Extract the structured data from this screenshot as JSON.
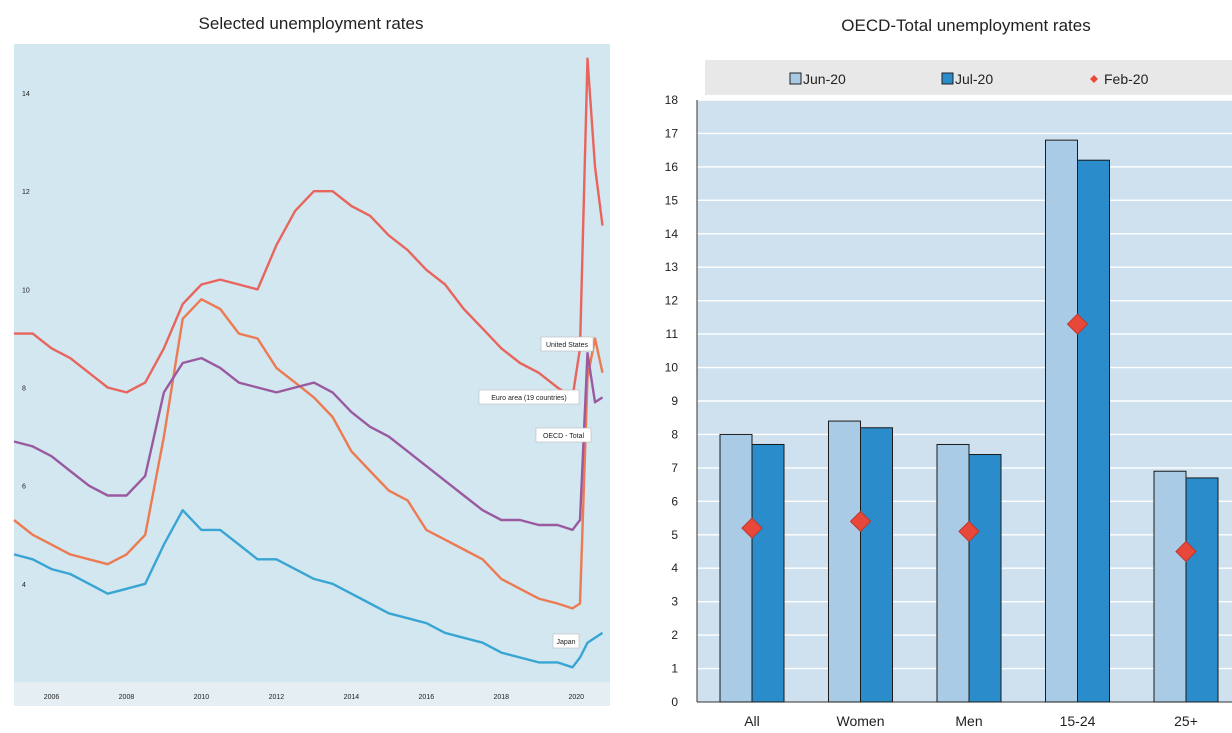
{
  "chart_data": [
    {
      "type": "line",
      "title": "Selected unemployment rates",
      "x_ticks": [
        "2006",
        "2008",
        "2010",
        "2012",
        "2014",
        "2016",
        "2018",
        "2020"
      ],
      "y_ticks": [
        "4",
        "6",
        "8",
        "10",
        "12",
        "14"
      ],
      "xlim": [
        2005.0,
        2020.9
      ],
      "ylim": [
        2.0,
        15.0
      ],
      "grid": false,
      "series": [
        {
          "name": "United States",
          "color": "#e8655e",
          "points": [
            [
              2005.0,
              9.1
            ],
            [
              2005.5,
              9.1
            ],
            [
              2006.0,
              8.8
            ],
            [
              2006.5,
              8.6
            ],
            [
              2007.0,
              8.3
            ],
            [
              2007.5,
              8.0
            ],
            [
              2008.0,
              7.9
            ],
            [
              2008.5,
              8.1
            ],
            [
              2009.0,
              8.8
            ],
            [
              2009.5,
              9.7
            ],
            [
              2010.0,
              10.1
            ],
            [
              2010.5,
              10.2
            ],
            [
              2011.0,
              10.1
            ],
            [
              2011.5,
              10.0
            ],
            [
              2012.0,
              10.9
            ],
            [
              2012.5,
              11.6
            ],
            [
              2013.0,
              12.0
            ],
            [
              2013.5,
              12.0
            ],
            [
              2014.0,
              11.7
            ],
            [
              2014.5,
              11.5
            ],
            [
              2015.0,
              11.1
            ],
            [
              2015.5,
              10.8
            ],
            [
              2016.0,
              10.4
            ],
            [
              2016.5,
              10.1
            ],
            [
              2017.0,
              9.6
            ],
            [
              2017.5,
              9.2
            ],
            [
              2018.0,
              8.8
            ],
            [
              2018.5,
              8.5
            ],
            [
              2019.0,
              8.3
            ],
            [
              2019.5,
              8.0
            ],
            [
              2019.9,
              7.8
            ],
            [
              2020.1,
              8.8
            ],
            [
              2020.3,
              14.7
            ],
            [
              2020.5,
              12.5
            ],
            [
              2020.7,
              11.3
            ]
          ]
        },
        {
          "name": "Euro area (19 countries)",
          "color": "#ec7a52",
          "points": [
            [
              2005.0,
              5.3
            ],
            [
              2005.5,
              5.0
            ],
            [
              2006.0,
              4.8
            ],
            [
              2006.5,
              4.6
            ],
            [
              2007.0,
              4.5
            ],
            [
              2007.5,
              4.4
            ],
            [
              2008.0,
              4.6
            ],
            [
              2008.5,
              5.0
            ],
            [
              2009.0,
              7.0
            ],
            [
              2009.5,
              9.4
            ],
            [
              2010.0,
              9.8
            ],
            [
              2010.5,
              9.6
            ],
            [
              2011.0,
              9.1
            ],
            [
              2011.5,
              9.0
            ],
            [
              2012.0,
              8.4
            ],
            [
              2012.5,
              8.1
            ],
            [
              2013.0,
              7.8
            ],
            [
              2013.5,
              7.4
            ],
            [
              2014.0,
              6.7
            ],
            [
              2014.5,
              6.3
            ],
            [
              2015.0,
              5.9
            ],
            [
              2015.5,
              5.7
            ],
            [
              2016.0,
              5.1
            ],
            [
              2016.5,
              4.9
            ],
            [
              2017.0,
              4.7
            ],
            [
              2017.5,
              4.5
            ],
            [
              2018.0,
              4.1
            ],
            [
              2018.5,
              3.9
            ],
            [
              2019.0,
              3.7
            ],
            [
              2019.5,
              3.6
            ],
            [
              2019.9,
              3.5
            ],
            [
              2020.1,
              3.6
            ],
            [
              2020.3,
              8.2
            ],
            [
              2020.5,
              9.0
            ],
            [
              2020.7,
              8.3
            ]
          ]
        },
        {
          "name": "OECD - Total",
          "color": "#9a5aa0",
          "points": [
            [
              2005.0,
              6.9
            ],
            [
              2005.5,
              6.8
            ],
            [
              2006.0,
              6.6
            ],
            [
              2006.5,
              6.3
            ],
            [
              2007.0,
              6.0
            ],
            [
              2007.5,
              5.8
            ],
            [
              2008.0,
              5.8
            ],
            [
              2008.5,
              6.2
            ],
            [
              2009.0,
              7.9
            ],
            [
              2009.5,
              8.5
            ],
            [
              2010.0,
              8.6
            ],
            [
              2010.5,
              8.4
            ],
            [
              2011.0,
              8.1
            ],
            [
              2011.5,
              8.0
            ],
            [
              2012.0,
              7.9
            ],
            [
              2012.5,
              8.0
            ],
            [
              2013.0,
              8.1
            ],
            [
              2013.5,
              7.9
            ],
            [
              2014.0,
              7.5
            ],
            [
              2014.5,
              7.2
            ],
            [
              2015.0,
              7.0
            ],
            [
              2015.5,
              6.7
            ],
            [
              2016.0,
              6.4
            ],
            [
              2016.5,
              6.1
            ],
            [
              2017.0,
              5.8
            ],
            [
              2017.5,
              5.5
            ],
            [
              2018.0,
              5.3
            ],
            [
              2018.5,
              5.3
            ],
            [
              2019.0,
              5.2
            ],
            [
              2019.5,
              5.2
            ],
            [
              2019.9,
              5.1
            ],
            [
              2020.1,
              5.3
            ],
            [
              2020.3,
              8.7
            ],
            [
              2020.5,
              7.7
            ],
            [
              2020.7,
              7.8
            ]
          ]
        },
        {
          "name": "Japan",
          "color": "#38a5d3",
          "points": [
            [
              2005.0,
              4.6
            ],
            [
              2005.5,
              4.5
            ],
            [
              2006.0,
              4.3
            ],
            [
              2006.5,
              4.2
            ],
            [
              2007.0,
              4.0
            ],
            [
              2007.5,
              3.8
            ],
            [
              2008.0,
              3.9
            ],
            [
              2008.5,
              4.0
            ],
            [
              2009.0,
              4.8
            ],
            [
              2009.5,
              5.5
            ],
            [
              2010.0,
              5.1
            ],
            [
              2010.5,
              5.1
            ],
            [
              2011.0,
              4.8
            ],
            [
              2011.5,
              4.5
            ],
            [
              2012.0,
              4.5
            ],
            [
              2012.5,
              4.3
            ],
            [
              2013.0,
              4.1
            ],
            [
              2013.5,
              4.0
            ],
            [
              2014.0,
              3.8
            ],
            [
              2014.5,
              3.6
            ],
            [
              2015.0,
              3.4
            ],
            [
              2015.5,
              3.3
            ],
            [
              2016.0,
              3.2
            ],
            [
              2016.5,
              3.0
            ],
            [
              2017.0,
              2.9
            ],
            [
              2017.5,
              2.8
            ],
            [
              2018.0,
              2.6
            ],
            [
              2018.5,
              2.5
            ],
            [
              2019.0,
              2.4
            ],
            [
              2019.5,
              2.4
            ],
            [
              2019.9,
              2.3
            ],
            [
              2020.1,
              2.5
            ],
            [
              2020.3,
              2.8
            ],
            [
              2020.5,
              2.9
            ],
            [
              2020.7,
              3.0
            ]
          ]
        }
      ]
    },
    {
      "type": "bar",
      "title": "OECD-Total unemployment rates",
      "categories": [
        "All",
        "Women",
        "Men",
        "15-24",
        "25+"
      ],
      "ylim": [
        0,
        18
      ],
      "y_ticks": [
        "0",
        "1",
        "2",
        "3",
        "4",
        "5",
        "6",
        "7",
        "8",
        "9",
        "10",
        "11",
        "12",
        "13",
        "14",
        "15",
        "16",
        "17",
        "18"
      ],
      "legend_position": "top",
      "grid": true,
      "series": [
        {
          "name": "Jun-20",
          "color": "#a9cbe6",
          "values": [
            8.0,
            8.4,
            7.7,
            16.8,
            6.9
          ]
        },
        {
          "name": "Jul-20",
          "color": "#2a8cca",
          "values": [
            7.7,
            8.2,
            7.4,
            16.2,
            6.7
          ]
        },
        {
          "name": "Feb-20",
          "color": "#e8483a",
          "type": "marker",
          "values": [
            5.2,
            5.4,
            5.1,
            11.3,
            4.5
          ]
        }
      ]
    }
  ]
}
